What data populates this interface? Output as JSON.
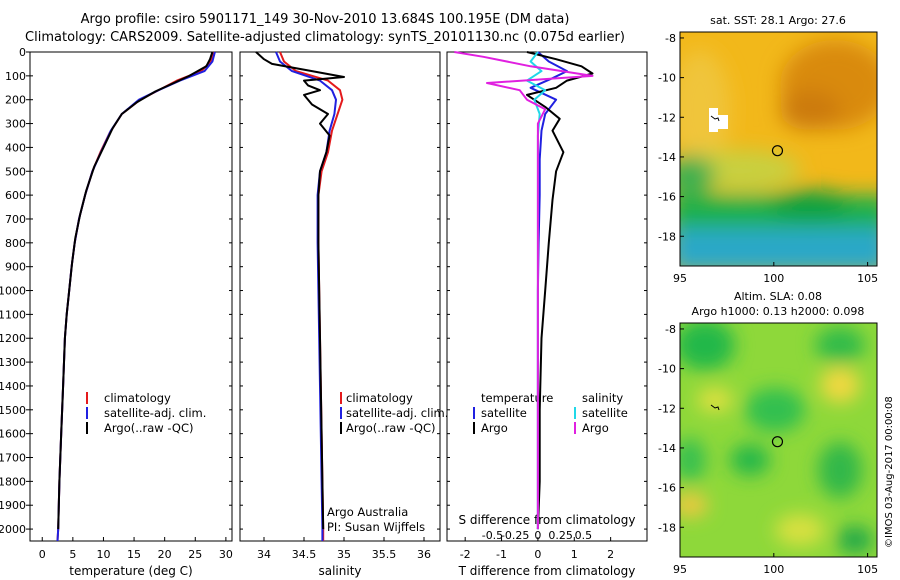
{
  "header": {
    "line1": "Argo profile: csiro 5901171_149 30-Nov-2010 13.684S 100.195E (DM data)",
    "line2": "Climatology: CARS2009. Satellite-adjusted climatology: synTS_20101130.nc (0.075d earlier)"
  },
  "colors": {
    "climatology": "#e41a1c",
    "satellite_adj": "#2020e0",
    "argo": "#000000",
    "salinity_sat": "#20d8e8",
    "salinity_argo": "#e020e0"
  },
  "depth_axis": {
    "ticks": [
      0,
      100,
      200,
      300,
      400,
      500,
      600,
      700,
      800,
      900,
      1000,
      1100,
      1200,
      1300,
      1400,
      1500,
      1600,
      1700,
      1800,
      1900,
      2000
    ]
  },
  "chart_data": [
    {
      "type": "line",
      "id": "temperature",
      "xlabel": "temperature (deg C)",
      "xlim": [
        -2,
        31
      ],
      "xticks": [
        0,
        5,
        10,
        15,
        20,
        25,
        30
      ],
      "ylim": [
        2050,
        0
      ],
      "legend": [
        "climatology",
        "satellite-adj. clim.",
        "Argo(..raw -QC)"
      ],
      "series": [
        {
          "name": "climatology",
          "color_key": "climatology",
          "points": [
            [
              28,
              0
            ],
            [
              27.5,
              40
            ],
            [
              26,
              80
            ],
            [
              22,
              120
            ],
            [
              19,
              160
            ],
            [
              16,
              200
            ],
            [
              13,
              260
            ],
            [
              11,
              340
            ],
            [
              9.5,
              420
            ],
            [
              8.2,
              500
            ],
            [
              7,
              600
            ],
            [
              6,
              700
            ],
            [
              5.3,
              800
            ],
            [
              4.8,
              900
            ],
            [
              4.4,
              1000
            ],
            [
              4,
              1100
            ],
            [
              3.7,
              1200
            ],
            [
              3.4,
              1400
            ],
            [
              3.1,
              1600
            ],
            [
              2.8,
              1800
            ],
            [
              2.6,
              2000
            ],
            [
              2.5,
              2050
            ]
          ]
        },
        {
          "name": "satellite-adj. clim.",
          "color_key": "satellite_adj",
          "points": [
            [
              28.2,
              0
            ],
            [
              27.8,
              40
            ],
            [
              26.5,
              80
            ],
            [
              22.5,
              120
            ],
            [
              19,
              160
            ],
            [
              15.8,
              200
            ],
            [
              13,
              260
            ],
            [
              11.2,
              330
            ],
            [
              9.6,
              420
            ],
            [
              8.2,
              500
            ],
            [
              7,
              600
            ],
            [
              6,
              700
            ],
            [
              5.3,
              800
            ],
            [
              4.8,
              900
            ],
            [
              4.4,
              1000
            ],
            [
              4,
              1100
            ],
            [
              3.7,
              1200
            ],
            [
              3.4,
              1400
            ],
            [
              3.1,
              1600
            ],
            [
              2.8,
              1800
            ],
            [
              2.6,
              2000
            ],
            [
              2.5,
              2050
            ]
          ]
        },
        {
          "name": "Argo(..raw -QC)",
          "color_key": "argo",
          "points": [
            [
              27.8,
              0
            ],
            [
              27.4,
              30
            ],
            [
              26.8,
              60
            ],
            [
              24,
              100
            ],
            [
              21.5,
              130
            ],
            [
              18.5,
              165
            ],
            [
              15.5,
              210
            ],
            [
              13,
              260
            ],
            [
              11.5,
              320
            ],
            [
              10,
              400
            ],
            [
              8.5,
              480
            ],
            [
              7.2,
              580
            ],
            [
              6.2,
              680
            ],
            [
              5.4,
              780
            ],
            [
              4.9,
              880
            ],
            [
              4.4,
              1000
            ],
            [
              4,
              1100
            ],
            [
              3.7,
              1200
            ],
            [
              3.4,
              1400
            ],
            [
              3.1,
              1600
            ],
            [
              2.8,
              1800
            ],
            [
              2.6,
              2000
            ]
          ]
        }
      ]
    },
    {
      "type": "line",
      "id": "salinity",
      "xlabel": "salinity",
      "xlim": [
        33.7,
        36.2
      ],
      "xticks": [
        34,
        34.5,
        35,
        35.5,
        36
      ],
      "ylim": [
        2050,
        0
      ],
      "legend": [
        "climatology",
        "satellite-adj. clim.",
        "Argo(..raw -QC)"
      ],
      "annotation": [
        "Argo Australia",
        "PI: Susan Wijffels"
      ],
      "series": [
        {
          "name": "climatology",
          "color_key": "climatology",
          "points": [
            [
              34.2,
              0
            ],
            [
              34.25,
              40
            ],
            [
              34.4,
              80
            ],
            [
              34.8,
              120
            ],
            [
              34.95,
              160
            ],
            [
              34.98,
              200
            ],
            [
              34.92,
              260
            ],
            [
              34.85,
              330
            ],
            [
              34.8,
              420
            ],
            [
              34.72,
              500
            ],
            [
              34.68,
              600
            ],
            [
              34.68,
              800
            ],
            [
              34.69,
              1000
            ],
            [
              34.7,
              1200
            ],
            [
              34.71,
              1400
            ],
            [
              34.72,
              1600
            ],
            [
              34.73,
              1800
            ],
            [
              34.74,
              2000
            ],
            [
              34.74,
              2050
            ]
          ]
        },
        {
          "name": "satellite-adj. clim.",
          "color_key": "satellite_adj",
          "points": [
            [
              34.15,
              0
            ],
            [
              34.2,
              40
            ],
            [
              34.35,
              80
            ],
            [
              34.7,
              120
            ],
            [
              34.85,
              160
            ],
            [
              34.9,
              200
            ],
            [
              34.88,
              260
            ],
            [
              34.82,
              330
            ],
            [
              34.78,
              420
            ],
            [
              34.7,
              500
            ],
            [
              34.67,
              600
            ],
            [
              34.67,
              800
            ],
            [
              34.68,
              1000
            ],
            [
              34.69,
              1200
            ],
            [
              34.7,
              1400
            ],
            [
              34.71,
              1600
            ],
            [
              34.72,
              1800
            ],
            [
              34.73,
              2000
            ],
            [
              34.73,
              2050
            ]
          ]
        },
        {
          "name": "Argo(..raw -QC)",
          "color_key": "argo",
          "points": [
            [
              33.9,
              0
            ],
            [
              34.0,
              30
            ],
            [
              34.1,
              50
            ],
            [
              34.6,
              80
            ],
            [
              35.0,
              105
            ],
            [
              34.5,
              120
            ],
            [
              34.55,
              140
            ],
            [
              34.7,
              160
            ],
            [
              34.5,
              180
            ],
            [
              34.6,
              220
            ],
            [
              34.8,
              260
            ],
            [
              34.7,
              300
            ],
            [
              34.82,
              350
            ],
            [
              34.78,
              420
            ],
            [
              34.7,
              500
            ],
            [
              34.68,
              600
            ],
            [
              34.68,
              800
            ],
            [
              34.69,
              1000
            ],
            [
              34.7,
              1200
            ],
            [
              34.71,
              1400
            ],
            [
              34.72,
              1600
            ],
            [
              34.73,
              1800
            ],
            [
              34.74,
              2000
            ]
          ]
        }
      ]
    },
    {
      "type": "line",
      "id": "difference",
      "xlabel": "T difference from climatology",
      "xlim": [
        -2.5,
        3
      ],
      "xticks": [
        -2,
        -1,
        0,
        1,
        2
      ],
      "xlabel_top": "S difference from climatology",
      "xticks_top": [
        -0.5,
        -0.25,
        0,
        0.25,
        0.5
      ],
      "xticks_top_labels": [
        "-0.5",
        "-0.25",
        "0",
        "0.25",
        "0.5"
      ],
      "ylim": [
        2050,
        0
      ],
      "legend_temperature": [
        "temperature",
        "satellite",
        "Argo"
      ],
      "legend_salinity": [
        "salinity",
        "satellite",
        "Argo"
      ],
      "series": [
        {
          "name": "T satellite",
          "color_key": "satellite_adj",
          "points": [
            [
              0,
              0
            ],
            [
              0.3,
              40
            ],
            [
              0.8,
              80
            ],
            [
              0.4,
              110
            ],
            [
              -0.2,
              150
            ],
            [
              0.5,
              200
            ],
            [
              0.2,
              260
            ],
            [
              0.1,
              330
            ],
            [
              0.05,
              450
            ],
            [
              0.05,
              600
            ],
            [
              0.02,
              800
            ],
            [
              0,
              1000
            ],
            [
              0,
              1500
            ],
            [
              0,
              2000
            ]
          ]
        },
        {
          "name": "T Argo",
          "color_key": "argo",
          "points": [
            [
              -0.3,
              0
            ],
            [
              0.5,
              30
            ],
            [
              1.2,
              60
            ],
            [
              1.5,
              90
            ],
            [
              0.8,
              120
            ],
            [
              0.5,
              150
            ],
            [
              -0.3,
              180
            ],
            [
              0.2,
              230
            ],
            [
              0.6,
              280
            ],
            [
              0.4,
              330
            ],
            [
              0.7,
              420
            ],
            [
              0.5,
              500
            ],
            [
              0.4,
              620
            ],
            [
              0.3,
              800
            ],
            [
              0.2,
              1000
            ],
            [
              0.1,
              1200
            ],
            [
              0.05,
              1500
            ],
            [
              0.05,
              1800
            ],
            [
              0,
              2000
            ]
          ]
        },
        {
          "name": "S satellite",
          "color_key": "salinity_sat",
          "points": [
            [
              0,
              0
            ],
            [
              -0.2,
              40
            ],
            [
              0.1,
              80
            ],
            [
              -0.3,
              120
            ],
            [
              0.2,
              160
            ],
            [
              -0.1,
              200
            ],
            [
              0.05,
              260
            ],
            [
              0,
              350
            ],
            [
              0,
              600
            ],
            [
              0,
              1000
            ],
            [
              0,
              1500
            ],
            [
              0,
              2000
            ]
          ]
        },
        {
          "name": "S Argo",
          "color_key": "salinity_argo",
          "points": [
            [
              -2.3,
              0
            ],
            [
              -1.5,
              20
            ],
            [
              -0.2,
              60
            ],
            [
              1.5,
              100
            ],
            [
              -1.4,
              130
            ],
            [
              -0.5,
              160
            ],
            [
              -0.3,
              200
            ],
            [
              0.2,
              240
            ],
            [
              0,
              300
            ],
            [
              0,
              500
            ],
            [
              0,
              1000
            ],
            [
              0,
              1500
            ],
            [
              0,
              2000
            ]
          ]
        }
      ]
    }
  ],
  "maps": {
    "sst": {
      "title": "sat. SST: 28.1 Argo: 27.6",
      "xticks": [
        95,
        100,
        105
      ],
      "yticks": [
        -8,
        -10,
        -12,
        -14,
        -16,
        -18
      ],
      "argo_lon": 100.195,
      "argo_lat": -13.684
    },
    "sla": {
      "title_line1": "Altim. SLA: 0.08",
      "title_line2": "Argo h1000: 0.13 h2000: 0.098",
      "xticks": [
        95,
        100,
        105
      ],
      "yticks": [
        -8,
        -10,
        -12,
        -14,
        -16,
        -18
      ],
      "argo_lon": 100.195,
      "argo_lat": -13.684
    }
  },
  "credit": "©IMOS 03-Aug-2017 00:00:08"
}
